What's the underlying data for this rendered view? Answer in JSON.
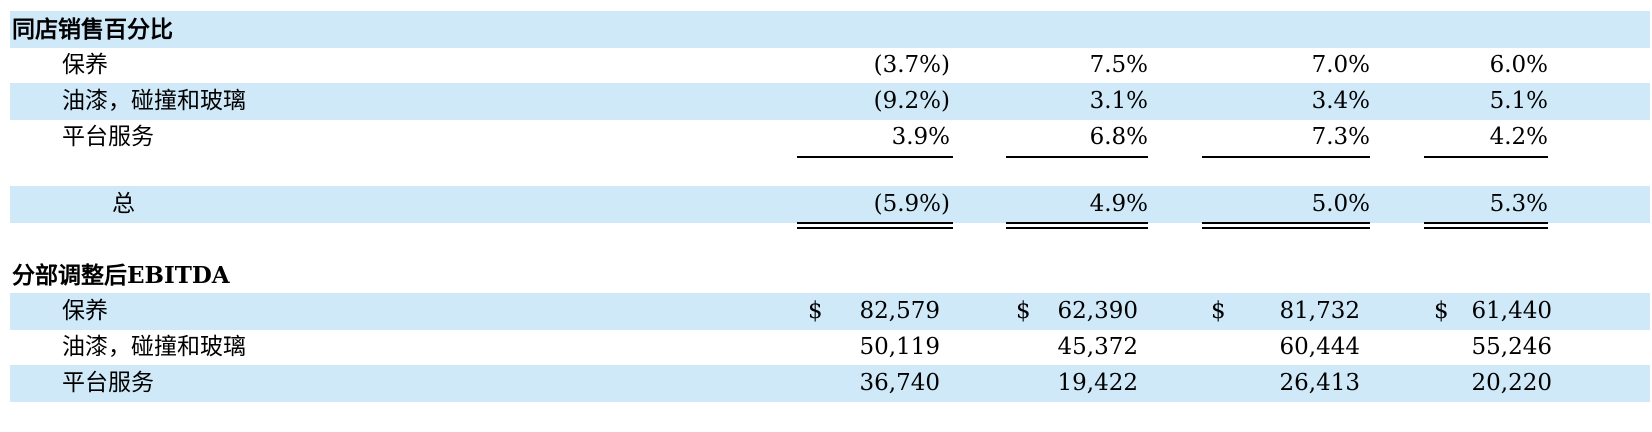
{
  "same_store": {
    "heading": "同店销售百分比",
    "rows": [
      {
        "label": "保养",
        "values": [
          "(3.7%)",
          "7.5%",
          "7.0%",
          "6.0%"
        ]
      },
      {
        "label": "油漆，碰撞和玻璃",
        "values": [
          "(9.2%)",
          "3.1%",
          "3.4%",
          "5.1%"
        ]
      },
      {
        "label": "平台服务",
        "values": [
          "3.9%",
          "6.8%",
          "7.3%",
          "4.2%"
        ]
      }
    ],
    "total": {
      "label": "总",
      "values": [
        "(5.9%)",
        "4.9%",
        "5.0%",
        "5.3%"
      ]
    }
  },
  "ebitda": {
    "heading": "分部调整后EBITDA",
    "currency": "$",
    "rows": [
      {
        "label": "保养",
        "values": [
          "82,579",
          "62,390",
          "81,732",
          "61,440"
        ]
      },
      {
        "label": "油漆，碰撞和玻璃",
        "values": [
          "50,119",
          "45,372",
          "60,444",
          "55,246"
        ]
      },
      {
        "label": "平台服务",
        "values": [
          "36,740",
          "19,422",
          "26,413",
          "20,220"
        ]
      }
    ]
  }
}
